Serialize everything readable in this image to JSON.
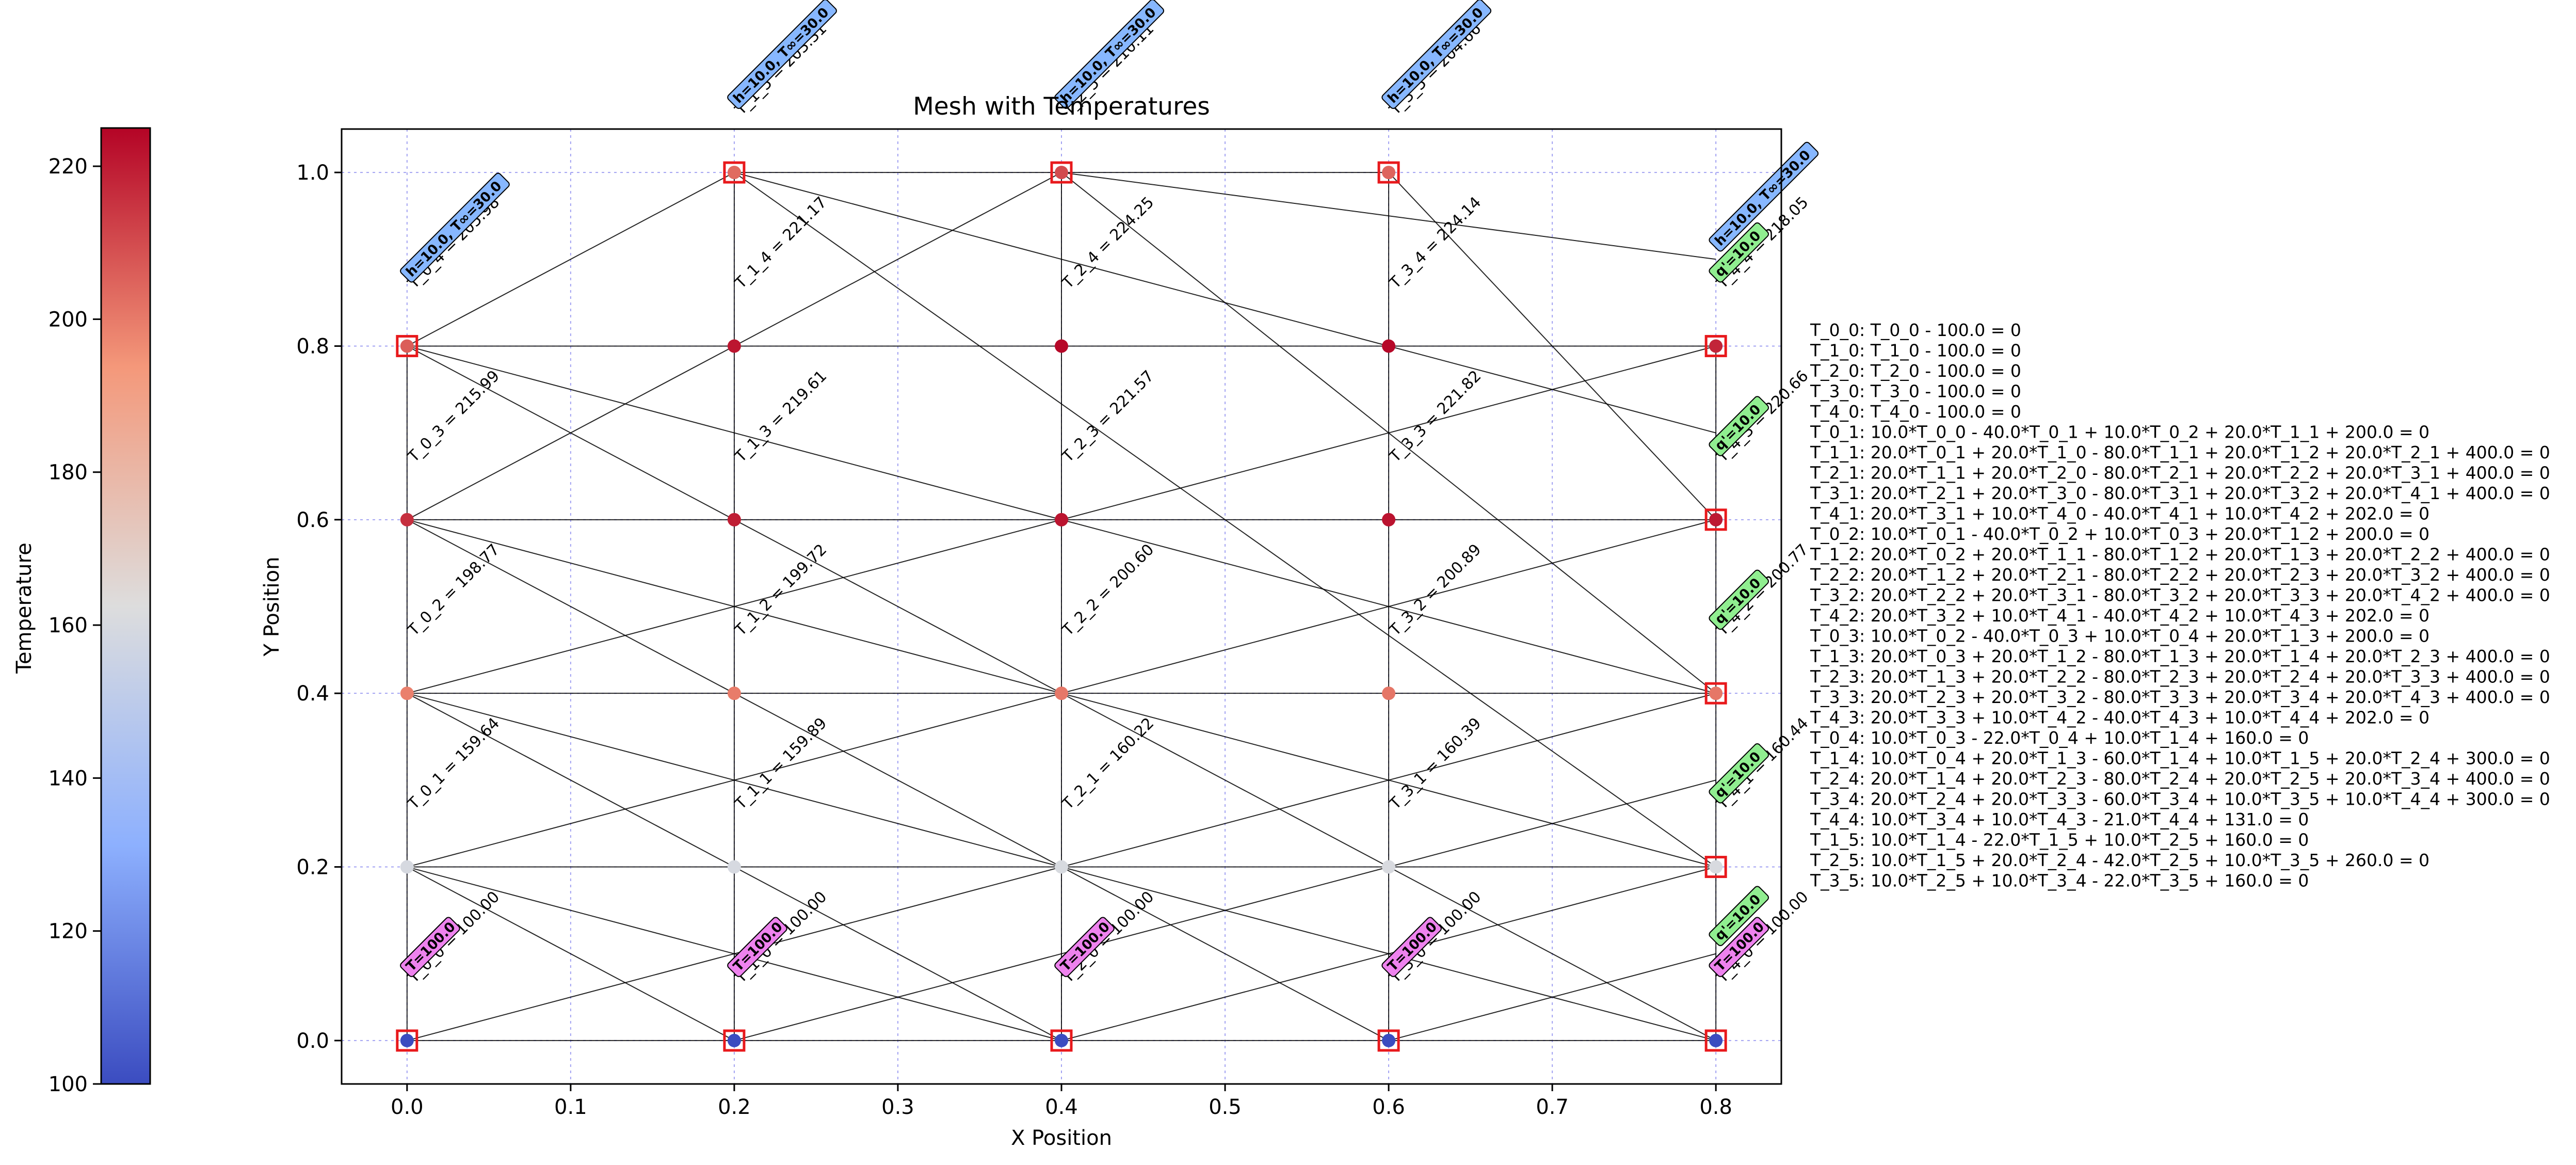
{
  "chart_data": {
    "type": "scatter",
    "title": "Mesh with Temperatures",
    "xlabel": "X Position",
    "ylabel": "Y Position",
    "xlim": [
      -0.04,
      0.84
    ],
    "ylim": [
      -0.05,
      1.05
    ],
    "grid": true,
    "xticks": [
      0.0,
      0.1,
      0.2,
      0.3,
      0.4,
      0.5,
      0.6,
      0.7,
      0.8
    ],
    "xtick_labels": [
      "0.0",
      "0.1",
      "0.2",
      "0.3",
      "0.4",
      "0.5",
      "0.6",
      "0.7",
      "0.8"
    ],
    "yticks": [
      0.0,
      0.2,
      0.4,
      0.6,
      0.8,
      1.0
    ],
    "ytick_labels": [
      "0.0",
      "0.2",
      "0.4",
      "0.6",
      "0.8",
      "1.0"
    ],
    "colorbar": {
      "label": "Temperature",
      "range": [
        100,
        225
      ],
      "ticks": [
        100,
        120,
        140,
        160,
        180,
        200,
        220
      ],
      "tick_labels": [
        "100",
        "120",
        "140",
        "160",
        "180",
        "200",
        "220"
      ],
      "colormap": "coolwarm"
    },
    "nodes": [
      {
        "x": 0.0,
        "y": 0.0,
        "value": 100.0,
        "label": "T_0_0 = 100.00"
      },
      {
        "x": 0.0,
        "y": 0.2,
        "value": 159.64,
        "label": "T_0_1 = 159.64"
      },
      {
        "x": 0.0,
        "y": 0.4,
        "value": 198.77,
        "label": "T_0_2 = 198.77"
      },
      {
        "x": 0.0,
        "y": 0.6,
        "value": 215.99,
        "label": "T_0_3 = 215.99"
      },
      {
        "x": 0.0,
        "y": 0.8,
        "value": 205.98,
        "label": "T_0_4 = 205.98"
      },
      {
        "x": 0.2,
        "y": 0.0,
        "value": 100.0,
        "label": "T_1_0 = 100.00"
      },
      {
        "x": 0.2,
        "y": 0.2,
        "value": 159.89,
        "label": "T_1_1 = 159.89"
      },
      {
        "x": 0.2,
        "y": 0.4,
        "value": 199.72,
        "label": "T_1_2 = 199.72"
      },
      {
        "x": 0.2,
        "y": 0.6,
        "value": 219.61,
        "label": "T_1_3 = 219.61"
      },
      {
        "x": 0.2,
        "y": 0.8,
        "value": 221.17,
        "label": "T_1_4 = 221.17"
      },
      {
        "x": 0.2,
        "y": 1.0,
        "value": 203.31,
        "label": "T_1_5 = 203.31"
      },
      {
        "x": 0.4,
        "y": 0.0,
        "value": 100.0,
        "label": "T_2_0 = 100.00"
      },
      {
        "x": 0.4,
        "y": 0.2,
        "value": 160.22,
        "label": "T_2_1 = 160.22"
      },
      {
        "x": 0.4,
        "y": 0.4,
        "value": 200.6,
        "label": "T_2_2 = 200.60"
      },
      {
        "x": 0.4,
        "y": 0.6,
        "value": 221.57,
        "label": "T_2_3 = 221.57"
      },
      {
        "x": 0.4,
        "y": 0.8,
        "value": 224.25,
        "label": "T_2_4 = 224.25"
      },
      {
        "x": 0.4,
        "y": 1.0,
        "value": 210.11,
        "label": "T_2_5 = 210.11"
      },
      {
        "x": 0.6,
        "y": 0.0,
        "value": 100.0,
        "label": "T_3_0 = 100.00"
      },
      {
        "x": 0.6,
        "y": 0.2,
        "value": 160.39,
        "label": "T_3_1 = 160.39"
      },
      {
        "x": 0.6,
        "y": 0.4,
        "value": 200.89,
        "label": "T_3_2 = 200.89"
      },
      {
        "x": 0.6,
        "y": 0.6,
        "value": 221.82,
        "label": "T_3_3 = 221.82"
      },
      {
        "x": 0.6,
        "y": 0.8,
        "value": 224.14,
        "label": "T_3_4 = 224.14"
      },
      {
        "x": 0.6,
        "y": 1.0,
        "value": 204.66,
        "label": "T_3_5 = 204.66"
      },
      {
        "x": 0.8,
        "y": 0.0,
        "value": 100.0,
        "label": "T_4_0 = 100.00"
      },
      {
        "x": 0.8,
        "y": 0.2,
        "value": 160.44,
        "label": "T_4_1 = 160.44"
      },
      {
        "x": 0.8,
        "y": 0.4,
        "value": 200.77,
        "label": "T_4_2 = 200.77"
      },
      {
        "x": 0.8,
        "y": 0.6,
        "value": 220.66,
        "label": "T_4_3 = 220.66"
      },
      {
        "x": 0.8,
        "y": 0.8,
        "value": 218.05,
        "label": "T_4_4 = 218.05"
      }
    ],
    "boundary_markers": [
      {
        "x": 0.0,
        "y": 0.0
      },
      {
        "x": 0.2,
        "y": 0.0
      },
      {
        "x": 0.4,
        "y": 0.0
      },
      {
        "x": 0.6,
        "y": 0.0
      },
      {
        "x": 0.8,
        "y": 0.0
      },
      {
        "x": 0.8,
        "y": 0.2
      },
      {
        "x": 0.8,
        "y": 0.4
      },
      {
        "x": 0.8,
        "y": 0.6
      },
      {
        "x": 0.8,
        "y": 0.8
      },
      {
        "x": 0.0,
        "y": 0.8
      },
      {
        "x": 0.2,
        "y": 1.0
      },
      {
        "x": 0.4,
        "y": 1.0
      },
      {
        "x": 0.6,
        "y": 1.0
      }
    ],
    "mesh_edges": [
      [
        0.0,
        0.0,
        0.8,
        0.0
      ],
      [
        0.0,
        0.2,
        0.8,
        0.2
      ],
      [
        0.0,
        0.4,
        0.8,
        0.4
      ],
      [
        0.0,
        0.6,
        0.8,
        0.6
      ],
      [
        0.0,
        0.8,
        0.8,
        0.8
      ],
      [
        0.2,
        1.0,
        0.6,
        1.0
      ],
      [
        0.0,
        0.0,
        0.0,
        0.8
      ],
      [
        0.2,
        0.0,
        0.2,
        1.0
      ],
      [
        0.4,
        0.0,
        0.4,
        1.0
      ],
      [
        0.6,
        0.0,
        0.6,
        1.0
      ],
      [
        0.8,
        0.0,
        0.8,
        0.8
      ],
      [
        0.0,
        0.0,
        0.8,
        0.4
      ],
      [
        0.0,
        0.2,
        0.8,
        0.6
      ],
      [
        0.0,
        0.4,
        0.8,
        0.8
      ],
      [
        0.0,
        0.6,
        0.4,
        1.0
      ],
      [
        0.0,
        0.8,
        0.2,
        1.0
      ],
      [
        0.0,
        0.2,
        0.2,
        0.0
      ],
      [
        0.0,
        0.4,
        0.4,
        0.0
      ],
      [
        0.0,
        0.6,
        0.6,
        0.0
      ],
      [
        0.0,
        0.8,
        0.8,
        0.0
      ],
      [
        0.2,
        1.0,
        0.8,
        0.2
      ],
      [
        0.4,
        1.0,
        0.8,
        0.4
      ],
      [
        0.6,
        1.0,
        0.8,
        0.6
      ],
      [
        0.2,
        0.0,
        0.8,
        0.3
      ],
      [
        0.4,
        0.0,
        0.8,
        0.2
      ],
      [
        0.6,
        0.0,
        0.8,
        0.1
      ],
      [
        0.2,
        1.0,
        0.8,
        0.7
      ],
      [
        0.4,
        1.0,
        0.8,
        0.9
      ],
      [
        0.0,
        0.6,
        0.8,
        0.2
      ],
      [
        0.0,
        0.4,
        0.8,
        0.0
      ],
      [
        0.0,
        0.2,
        0.4,
        0.0
      ],
      [
        0.0,
        0.8,
        0.8,
        0.4
      ]
    ],
    "bc_badges": [
      {
        "x": 0.0,
        "y": 0.0,
        "text": "T=100.0",
        "color": "#ee82ee"
      },
      {
        "x": 0.2,
        "y": 0.0,
        "text": "T=100.0",
        "color": "#ee82ee"
      },
      {
        "x": 0.4,
        "y": 0.0,
        "text": "T=100.0",
        "color": "#ee82ee"
      },
      {
        "x": 0.6,
        "y": 0.0,
        "text": "T=100.0",
        "color": "#ee82ee"
      },
      {
        "x": 0.8,
        "y": 0.0,
        "text": "T=100.0",
        "color": "#ee82ee"
      },
      {
        "x": 0.8,
        "y": 0.0,
        "text": "q'=10.0",
        "color": "#90ee90",
        "offset": 1
      },
      {
        "x": 0.8,
        "y": 0.2,
        "text": "q'=10.0",
        "color": "#90ee90"
      },
      {
        "x": 0.8,
        "y": 0.4,
        "text": "q'=10.0",
        "color": "#90ee90"
      },
      {
        "x": 0.8,
        "y": 0.6,
        "text": "q'=10.0",
        "color": "#90ee90"
      },
      {
        "x": 0.8,
        "y": 0.8,
        "text": "q'=10.0",
        "color": "#90ee90"
      },
      {
        "x": 0.8,
        "y": 0.8,
        "text": "h=10.0, T∞=30.0",
        "color": "#87b7ff",
        "offset": 1
      },
      {
        "x": 0.0,
        "y": 0.8,
        "text": "h=10.0, T∞=30.0",
        "color": "#87b7ff"
      },
      {
        "x": 0.2,
        "y": 1.0,
        "text": "h=10.0, T∞=30.0",
        "color": "#87b7ff"
      },
      {
        "x": 0.4,
        "y": 1.0,
        "text": "h=10.0, T∞=30.0",
        "color": "#87b7ff"
      },
      {
        "x": 0.6,
        "y": 1.0,
        "text": "h=10.0, T∞=30.0",
        "color": "#87b7ff"
      }
    ],
    "equations": [
      "T_0_0: T_0_0 - 100.0 = 0",
      "T_1_0: T_1_0 - 100.0 = 0",
      "T_2_0: T_2_0 - 100.0 = 0",
      "T_3_0: T_3_0 - 100.0 = 0",
      "T_4_0: T_4_0 - 100.0 = 0",
      "T_0_1: 10.0*T_0_0 - 40.0*T_0_1 + 10.0*T_0_2 + 20.0*T_1_1 + 200.0 = 0",
      "T_1_1: 20.0*T_0_1 + 20.0*T_1_0 - 80.0*T_1_1 + 20.0*T_1_2 + 20.0*T_2_1 + 400.0 = 0",
      "T_2_1: 20.0*T_1_1 + 20.0*T_2_0 - 80.0*T_2_1 + 20.0*T_2_2 + 20.0*T_3_1 + 400.0 = 0",
      "T_3_1: 20.0*T_2_1 + 20.0*T_3_0 - 80.0*T_3_1 + 20.0*T_3_2 + 20.0*T_4_1 + 400.0 = 0",
      "T_4_1: 20.0*T_3_1 + 10.0*T_4_0 - 40.0*T_4_1 + 10.0*T_4_2 + 202.0 = 0",
      "T_0_2: 10.0*T_0_1 - 40.0*T_0_2 + 10.0*T_0_3 + 20.0*T_1_2 + 200.0 = 0",
      "T_1_2: 20.0*T_0_2 + 20.0*T_1_1 - 80.0*T_1_2 + 20.0*T_1_3 + 20.0*T_2_2 + 400.0 = 0",
      "T_2_2: 20.0*T_1_2 + 20.0*T_2_1 - 80.0*T_2_2 + 20.0*T_2_3 + 20.0*T_3_2 + 400.0 = 0",
      "T_3_2: 20.0*T_2_2 + 20.0*T_3_1 - 80.0*T_3_2 + 20.0*T_3_3 + 20.0*T_4_2 + 400.0 = 0",
      "T_4_2: 20.0*T_3_2 + 10.0*T_4_1 - 40.0*T_4_2 + 10.0*T_4_3 + 202.0 = 0",
      "T_0_3: 10.0*T_0_2 - 40.0*T_0_3 + 10.0*T_0_4 + 20.0*T_1_3 + 200.0 = 0",
      "T_1_3: 20.0*T_0_3 + 20.0*T_1_2 - 80.0*T_1_3 + 20.0*T_1_4 + 20.0*T_2_3 + 400.0 = 0",
      "T_2_3: 20.0*T_1_3 + 20.0*T_2_2 - 80.0*T_2_3 + 20.0*T_2_4 + 20.0*T_3_3 + 400.0 = 0",
      "T_3_3: 20.0*T_2_3 + 20.0*T_3_2 - 80.0*T_3_3 + 20.0*T_3_4 + 20.0*T_4_3 + 400.0 = 0",
      "T_4_3: 20.0*T_3_3 + 10.0*T_4_2 - 40.0*T_4_3 + 10.0*T_4_4 + 202.0 = 0",
      "T_0_4: 10.0*T_0_3 - 22.0*T_0_4 + 10.0*T_1_4 + 160.0 = 0",
      "T_1_4: 10.0*T_0_4 + 20.0*T_1_3 - 60.0*T_1_4 + 10.0*T_1_5 + 20.0*T_2_4 + 300.0 = 0",
      "T_2_4: 20.0*T_1_4 + 20.0*T_2_3 - 80.0*T_2_4 + 20.0*T_2_5 + 20.0*T_3_4 + 400.0 = 0",
      "T_3_4: 20.0*T_2_4 + 20.0*T_3_3 - 60.0*T_3_4 + 10.0*T_3_5 + 10.0*T_4_4 + 300.0 = 0",
      "T_4_4: 10.0*T_3_4 + 10.0*T_4_3 - 21.0*T_4_4 + 131.0 = 0",
      "T_1_5: 10.0*T_1_4 - 22.0*T_1_5 + 10.0*T_2_5 + 160.0 = 0",
      "T_2_5: 10.0*T_1_5 + 20.0*T_2_4 - 42.0*T_2_5 + 10.0*T_3_5 + 260.0 = 0",
      "T_3_5: 10.0*T_2_5 + 10.0*T_3_4 - 22.0*T_3_5 + 160.0 = 0"
    ]
  }
}
